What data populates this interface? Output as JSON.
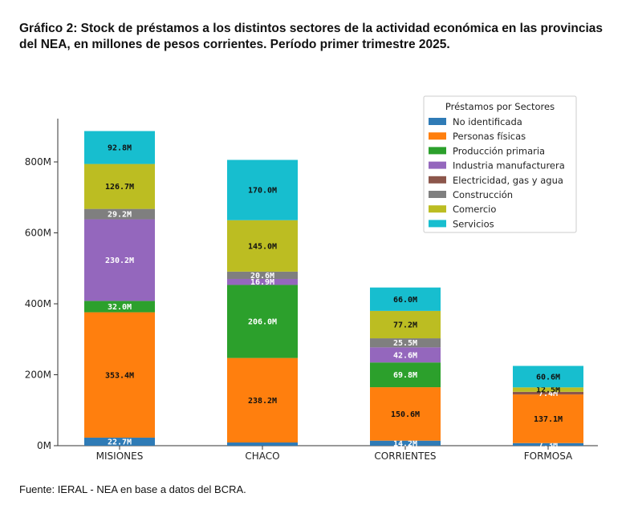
{
  "chart_data": {
    "type": "bar",
    "stacked": true,
    "title": "Gráfico 2: Stock de préstamos a los distintos sectores de la actividad económica en las provincias del NEA, en millones de pesos corrientes. Período primer trimestre 2025.",
    "source": "Fuente: IERAL - NEA en base a datos del BCRA.",
    "categories": [
      "MISIONES",
      "CHACO",
      "CORRIENTES",
      "FORMOSA"
    ],
    "ylim": [
      0,
      900
    ],
    "yticks": [
      0,
      200,
      400,
      600,
      800
    ],
    "ytick_labels": [
      "0M",
      "200M",
      "400M",
      "600M",
      "800M"
    ],
    "legend": {
      "title": "Préstamos por Sectores",
      "placement": "top-right"
    },
    "grid": false,
    "series": [
      {
        "name": "No identificada",
        "color": "#2f7bb6",
        "values": [
          22.7,
          9.0,
          14.2,
          7.3
        ],
        "labels": [
          "22.7M",
          "",
          "14.2M",
          "7.3M"
        ]
      },
      {
        "name": "Personas físicas",
        "color": "#ff7f0e",
        "values": [
          353.4,
          238.2,
          150.6,
          137.1
        ],
        "labels": [
          "353.4M",
          "238.2M",
          "150.6M",
          "137.1M"
        ]
      },
      {
        "name": "Producción primaria",
        "color": "#2ca02c",
        "values": [
          32.0,
          206.0,
          69.8,
          0
        ],
        "labels": [
          "32.0M",
          "206.0M",
          "69.8M",
          ""
        ]
      },
      {
        "name": "Industria manufacturera",
        "color": "#9467bd",
        "values": [
          230.2,
          16.9,
          42.6,
          0
        ],
        "labels": [
          "230.2M",
          "16.9M",
          "42.6M",
          ""
        ]
      },
      {
        "name": "Electricidad, gas y agua",
        "color": "#8c564b",
        "values": [
          0,
          0,
          0,
          7.4
        ],
        "labels": [
          "",
          "",
          "",
          "7.4M"
        ]
      },
      {
        "name": "Construcción",
        "color": "#7f7f7f",
        "values": [
          29.2,
          20.6,
          25.5,
          0
        ],
        "labels": [
          "29.2M",
          "20.6M",
          "25.5M",
          ""
        ]
      },
      {
        "name": "Comercio",
        "color": "#bcbd22",
        "values": [
          126.7,
          145.0,
          77.2,
          12.5
        ],
        "labels": [
          "126.7M",
          "145.0M",
          "77.2M",
          "12.5M"
        ]
      },
      {
        "name": "Servicios",
        "color": "#17becf",
        "values": [
          92.8,
          170.0,
          66.0,
          60.6
        ],
        "labels": [
          "92.8M",
          "170.0M",
          "66.0M",
          "60.6M"
        ]
      }
    ]
  }
}
